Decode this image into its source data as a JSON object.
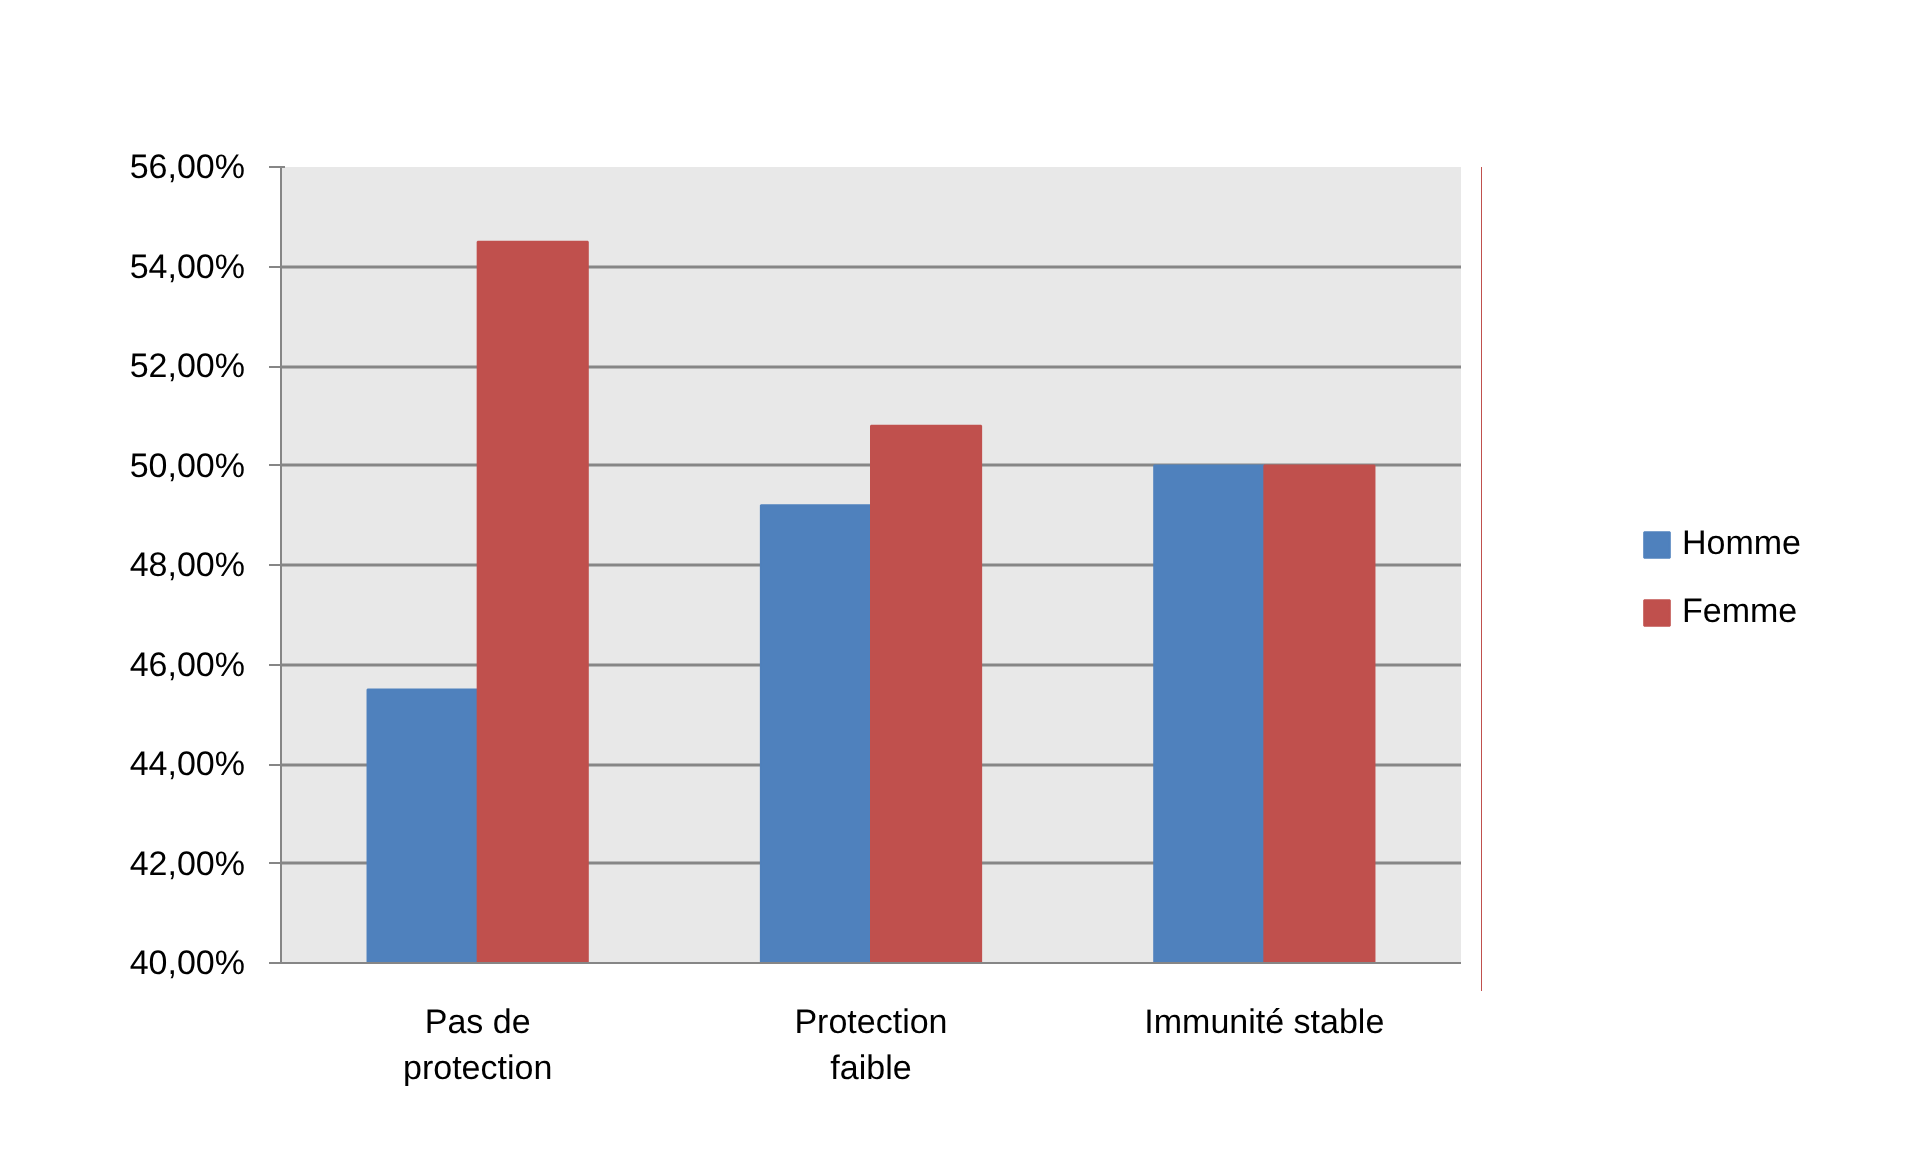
{
  "chart_data": {
    "type": "bar",
    "categories": [
      "Pas de protection",
      "Protection faible",
      "Immunité stable"
    ],
    "series": [
      {
        "name": "Homme",
        "color": "#4f81bd",
        "values": [
          45.5,
          49.2,
          50.0
        ]
      },
      {
        "name": "Femme",
        "color": "#c0504d",
        "values": [
          54.5,
          50.8,
          50.0
        ]
      }
    ],
    "ylim": [
      40,
      56
    ],
    "yticks": [
      {
        "value": 40,
        "label": "40,00%"
      },
      {
        "value": 42,
        "label": "42,00%"
      },
      {
        "value": 44,
        "label": "44,00%"
      },
      {
        "value": 46,
        "label": "46,00%"
      },
      {
        "value": 48,
        "label": "48,00%"
      },
      {
        "value": 50,
        "label": "50,00%"
      },
      {
        "value": 52,
        "label": "52,00%"
      },
      {
        "value": 54,
        "label": "54,00%"
      },
      {
        "value": 56,
        "label": "56,00%"
      }
    ],
    "grid": "y",
    "legend": "right"
  }
}
